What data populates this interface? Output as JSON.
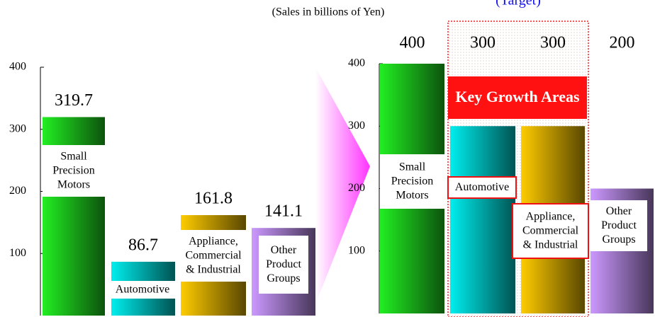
{
  "title": "(Sales in billions of Yen)",
  "annotations": [
    "(Target)",
    "Key Growth Areas"
  ],
  "chart_data": [
    {
      "type": "bar",
      "categories": [
        "Small Precision Motors",
        "Automotive",
        "Appliance, Commercial & Industrial",
        "Other Product Groups"
      ],
      "values": [
        319.7,
        86.7,
        161.8,
        141.1
      ],
      "colors": [
        "#22ee22",
        "#00eeee",
        "#ffcc00",
        "#cc99ff"
      ],
      "ylim": [
        0,
        400
      ],
      "yticks": [
        100,
        200,
        300,
        400
      ]
    },
    {
      "type": "bar",
      "categories": [
        "Small Precision Motors",
        "Automotive",
        "Appliance, Commercial & Industrial",
        "Other Product Groups"
      ],
      "values": [
        400,
        300,
        300,
        200
      ],
      "colors": [
        "#22ee22",
        "#00eeee",
        "#ffcc00",
        "#cc99ff"
      ],
      "ylim": [
        0,
        400
      ],
      "yticks": [
        100,
        200,
        300,
        400
      ]
    }
  ]
}
